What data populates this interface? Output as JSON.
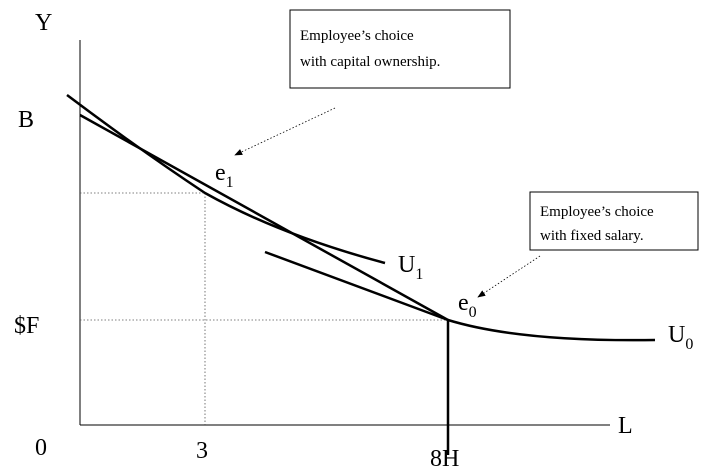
{
  "axes": {
    "y_label": "Y",
    "x_label": "L",
    "origin": "0",
    "x_ticks": [
      "3",
      "8H"
    ],
    "y_ticks": [
      "B",
      "$F"
    ]
  },
  "points": [
    {
      "text": "e",
      "sub": "1"
    },
    {
      "text": "e",
      "sub": "0"
    }
  ],
  "curves": [
    {
      "text": "U",
      "sub": "1"
    },
    {
      "text": "U",
      "sub": "0"
    }
  ],
  "annotations": [
    {
      "lines": [
        "Employee’s choice",
        "with capital ownership."
      ]
    },
    {
      "lines": [
        "Employee’s choice",
        "with fixed salary."
      ]
    }
  ]
}
